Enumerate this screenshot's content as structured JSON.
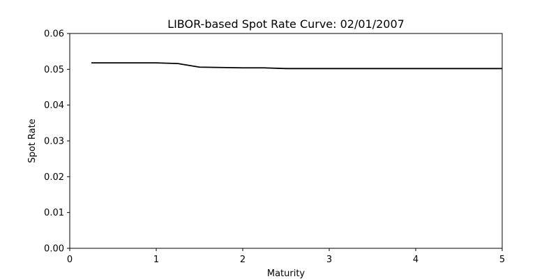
{
  "chart_data": {
    "type": "line",
    "title": "LIBOR-based Spot Rate Curve: 02/01/2007",
    "xlabel": "Maturity",
    "ylabel": "Spot Rate",
    "xlim": [
      0,
      5
    ],
    "ylim": [
      0,
      0.06
    ],
    "xticks": [
      0,
      1,
      2,
      3,
      4,
      5
    ],
    "xtick_labels": [
      "0",
      "1",
      "2",
      "3",
      "4",
      "5"
    ],
    "yticks": [
      0.0,
      0.01,
      0.02,
      0.03,
      0.04,
      0.05,
      0.06
    ],
    "ytick_labels": [
      "0.00",
      "0.01",
      "0.02",
      "0.03",
      "0.04",
      "0.05",
      "0.06"
    ],
    "grid": false,
    "series": [
      {
        "color": "#000000",
        "x": [
          0.25,
          0.5,
          0.75,
          1.0,
          1.25,
          1.5,
          1.75,
          2.0,
          2.25,
          2.5,
          2.75,
          3.0,
          3.25,
          3.5,
          3.75,
          4.0,
          4.25,
          4.5,
          4.75,
          5.0
        ],
        "y": [
          0.0518,
          0.0518,
          0.0518,
          0.0518,
          0.0516,
          0.0506,
          0.0505,
          0.0504,
          0.0504,
          0.0502,
          0.0502,
          0.0502,
          0.0502,
          0.0502,
          0.0502,
          0.0502,
          0.0502,
          0.0502,
          0.0502,
          0.0502
        ]
      }
    ]
  }
}
